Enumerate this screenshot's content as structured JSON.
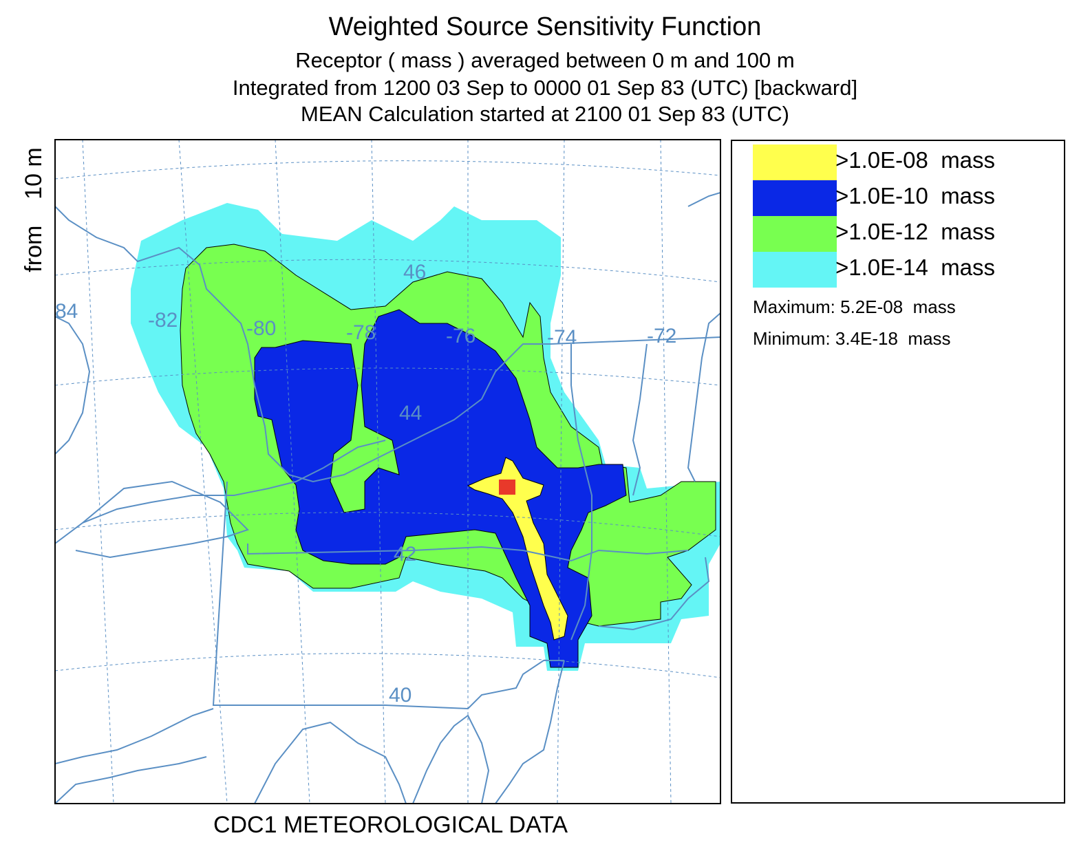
{
  "title": "Weighted Source Sensitivity Function",
  "subtitle_lines": [
    "Receptor  ( mass  ) averaged between     0 m and   100 m",
    "Integrated from 1200 03 Sep to 0000 01 Sep 83 (UTC) [backward]",
    "MEAN Calculation started at 2100 01 Sep 83 (UTC)"
  ],
  "side_label": "from    10 m",
  "footer": "CDC1 METEOROLOGICAL DATA",
  "longitude_labels": [
    "-84",
    "-82",
    "-80",
    "-78",
    "-76",
    "-74",
    "-72"
  ],
  "latitude_labels": [
    "46",
    "44",
    "42",
    "40"
  ],
  "legend": {
    "items": [
      {
        "label": ">1.0E-08  mass",
        "color": "#ffff4d"
      },
      {
        "label": ">1.0E-10  mass",
        "color": "#0a28e6"
      },
      {
        "label": ">1.0E-12  mass",
        "color": "#78ff50"
      },
      {
        "label": ">1.0E-14  mass",
        "color": "#64f5f5"
      }
    ],
    "maximum": "Maximum: 5.2E-08  mass",
    "minimum": "Minimum: 3.4E-18  mass"
  },
  "source_marker_color": "#e8392a",
  "line_color": "#5a8fc4"
}
